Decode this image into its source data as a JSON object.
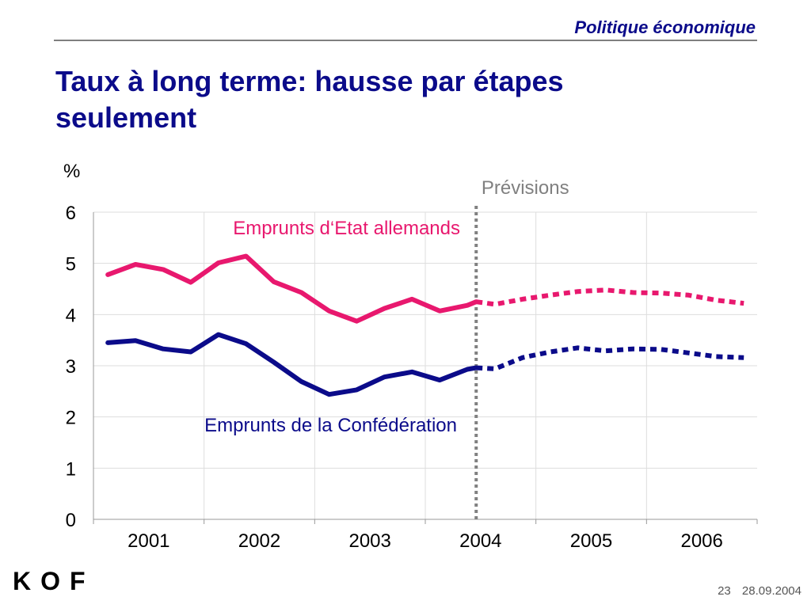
{
  "header": {
    "section": "Politique économique"
  },
  "slide": {
    "title_line1": "Taux à long terme: hausse par étapes",
    "title_line2": "seulement"
  },
  "footer": {
    "logo": "KOF",
    "page": "23",
    "date": "28.09.2004"
  },
  "chart_data": {
    "type": "line",
    "xlabel": "",
    "ylabel": "%",
    "ylim": [
      0,
      6
    ],
    "yticks": [
      0,
      1,
      2,
      3,
      4,
      5,
      6
    ],
    "year_labels": [
      "2001",
      "2002",
      "2003",
      "2004",
      "2005",
      "2006"
    ],
    "xlim": [
      2001.0,
      2007.0
    ],
    "forecast_start": 2004.46,
    "forecast_label": "Prévisions",
    "grid": true,
    "colors": {
      "german": "#e8186e",
      "swiss": "#0b0b8a",
      "divider": "#808080",
      "grid": "#dddddd"
    },
    "series": [
      {
        "name": "Emprunts d‘Etat allemands",
        "key": "german",
        "x": [
          2001.13,
          2001.38,
          2001.63,
          2001.88,
          2002.13,
          2002.38,
          2002.63,
          2002.88,
          2003.13,
          2003.38,
          2003.63,
          2003.88,
          2004.13,
          2004.38,
          2004.46
        ],
        "values": [
          4.78,
          4.98,
          4.88,
          4.63,
          5.01,
          5.14,
          4.64,
          4.43,
          4.07,
          3.87,
          4.12,
          4.3,
          4.07,
          4.18,
          4.25
        ],
        "forecast_x": [
          2004.46,
          2004.63,
          2004.88,
          2005.13,
          2005.38,
          2005.63,
          2005.88,
          2006.13,
          2006.38,
          2006.63,
          2006.88
        ],
        "forecast_values": [
          4.25,
          4.2,
          4.3,
          4.38,
          4.45,
          4.48,
          4.43,
          4.42,
          4.38,
          4.28,
          4.22
        ]
      },
      {
        "name": "Emprunts de la Confédération",
        "key": "swiss",
        "x": [
          2001.13,
          2001.38,
          2001.63,
          2001.88,
          2002.13,
          2002.38,
          2002.63,
          2002.88,
          2003.13,
          2003.38,
          2003.63,
          2003.88,
          2004.13,
          2004.38,
          2004.46
        ],
        "values": [
          3.45,
          3.49,
          3.33,
          3.27,
          3.61,
          3.43,
          3.07,
          2.69,
          2.44,
          2.53,
          2.78,
          2.88,
          2.72,
          2.93,
          2.96
        ],
        "forecast_x": [
          2004.46,
          2004.63,
          2004.88,
          2005.13,
          2005.38,
          2005.63,
          2005.88,
          2006.13,
          2006.38,
          2006.63,
          2006.88
        ],
        "forecast_values": [
          2.96,
          2.94,
          3.16,
          3.27,
          3.35,
          3.29,
          3.33,
          3.32,
          3.25,
          3.18,
          3.16
        ]
      }
    ]
  }
}
